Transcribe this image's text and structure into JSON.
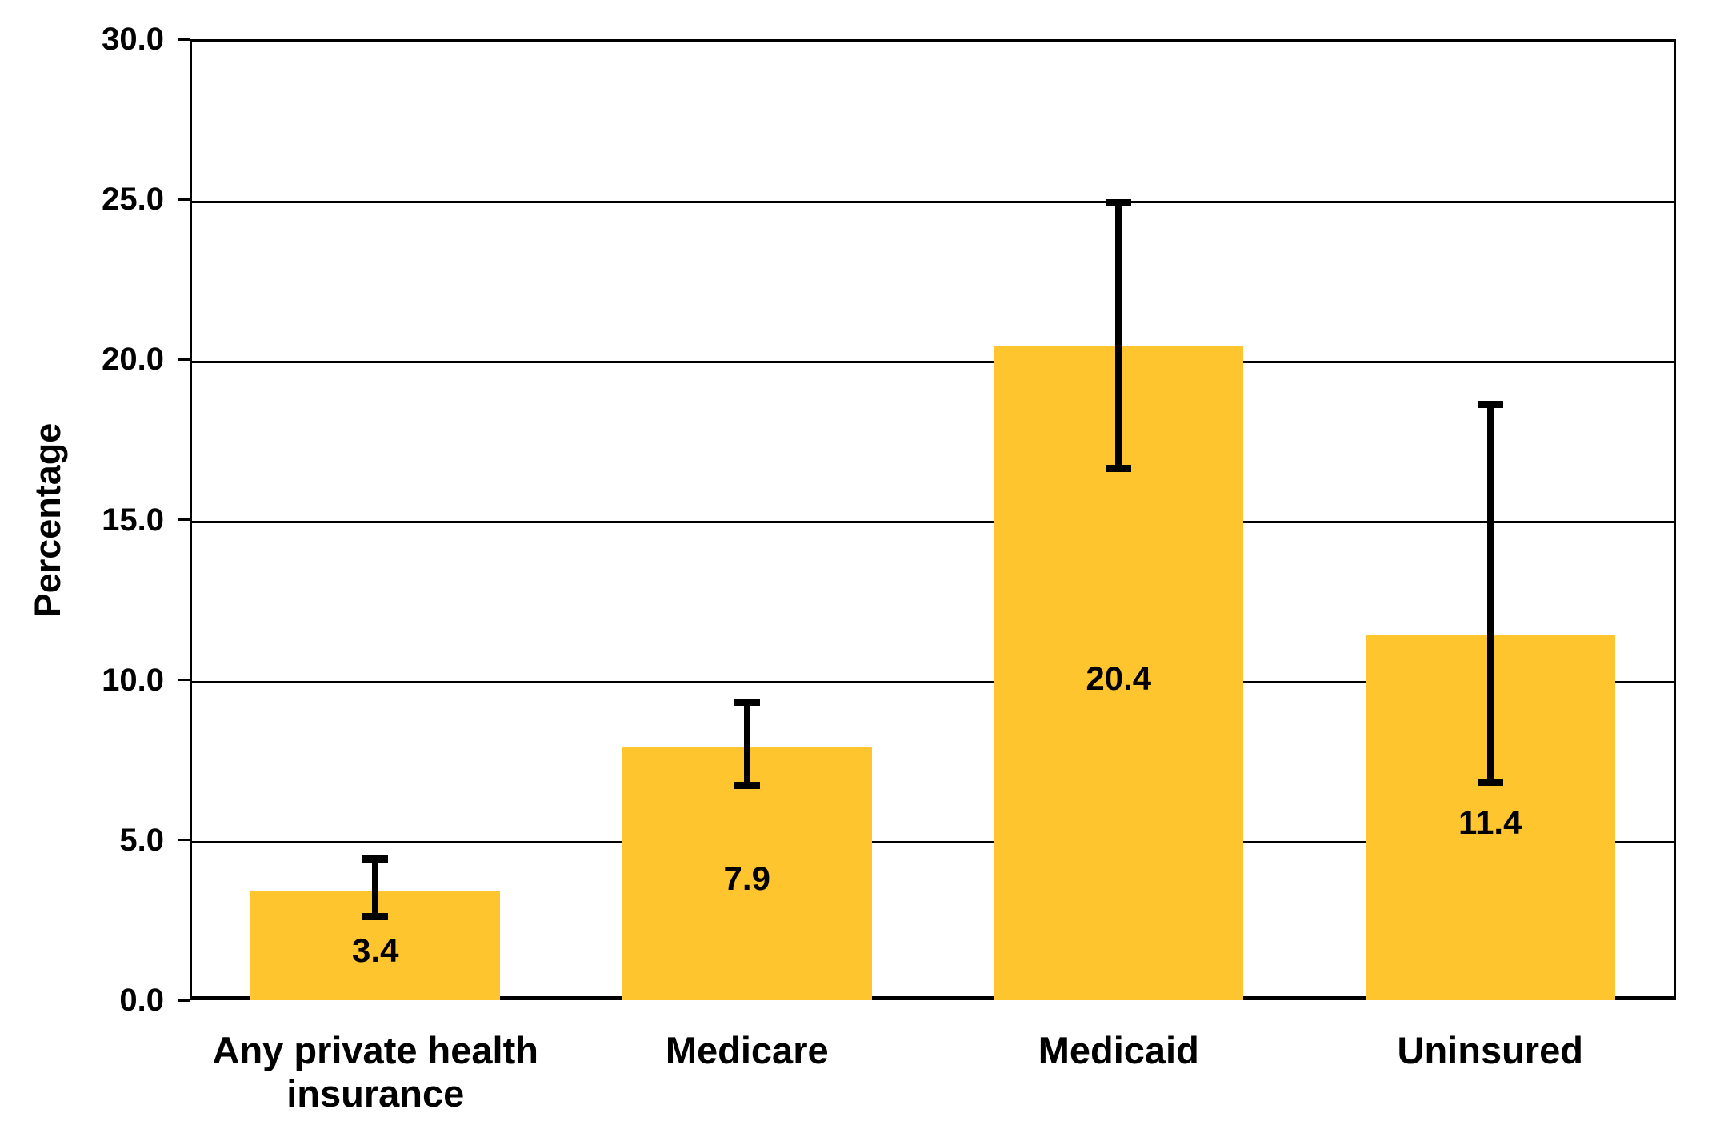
{
  "chart_data": {
    "type": "bar",
    "ylabel": "Percentage",
    "xlabel": "",
    "ylim": [
      0,
      30
    ],
    "ytick_step": 5,
    "ytick_labels": [
      "0.0",
      "5.0",
      "10.0",
      "15.0",
      "20.0",
      "25.0",
      "30.0"
    ],
    "categories": [
      "Any private health insurance",
      "Medicare",
      "Medicaid",
      "Uninsured"
    ],
    "category_label_lines": [
      [
        "Any private health",
        "insurance"
      ],
      [
        "Medicare"
      ],
      [
        "Medicaid"
      ],
      [
        "Uninsured"
      ]
    ],
    "values": [
      3.4,
      7.9,
      20.4,
      11.4
    ],
    "value_labels": [
      "3.4",
      "7.9",
      "20.4",
      "11.4"
    ],
    "error_low": [
      2.6,
      6.7,
      16.6,
      6.8
    ],
    "error_high": [
      4.4,
      9.3,
      24.9,
      18.6
    ],
    "bar_color": "#FEC52E",
    "grid": true,
    "legend": null
  }
}
